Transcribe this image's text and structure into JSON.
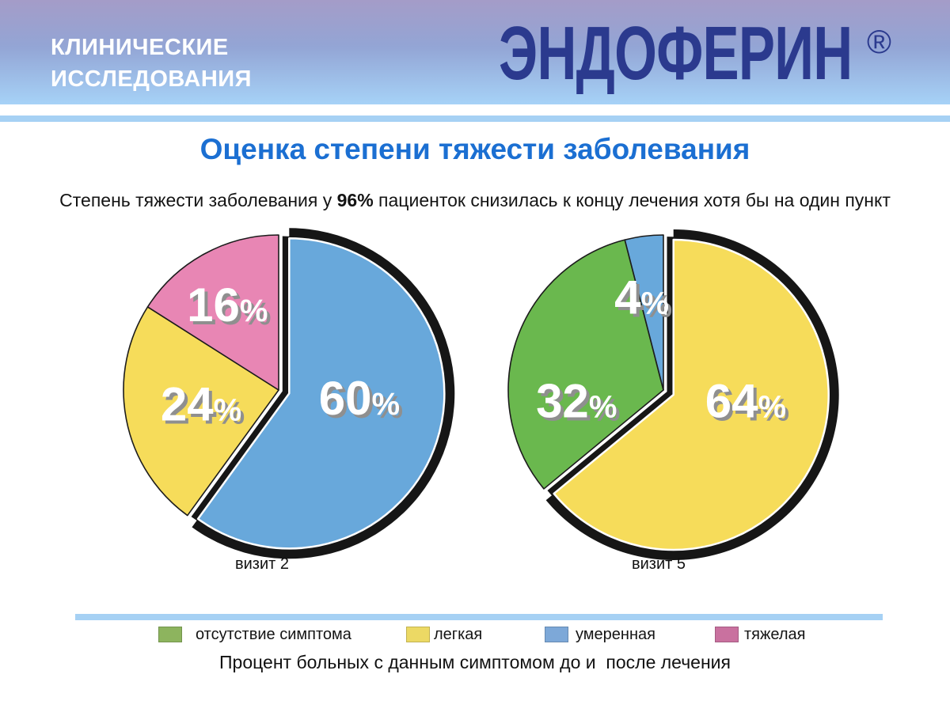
{
  "header": {
    "tagline_line1": "КЛИНИЧЕСКИЕ",
    "tagline_line2": "ИССЛЕДОВАНИЯ",
    "brand": "ЭНДОФЕРИН",
    "registered_mark": "®"
  },
  "title": "Оценка степени тяжести заболевания",
  "subtitle": {
    "pre": "Степень тяжести заболевания у ",
    "highlight": "96%",
    "post": " пациенток снизилась к концу лечения хотя бы на один пункт"
  },
  "caption": "Процент больных с данным симптомом до и  после лечения",
  "colors": {
    "header_gradient_top": "#a49cc8",
    "header_gradient_bottom": "#a6d2f7",
    "divider_blue": "#a6d1f4",
    "title_blue": "#1b6fd2",
    "brand_navy": "#2b3a8e",
    "pie_shadow_black": "#161616",
    "label_white": "#ffffff",
    "label_shadow_gray": "#8f8f8f"
  },
  "chart_data": [
    {
      "type": "pie",
      "title": "визит 2",
      "unit": "%",
      "order": "clockwise-from-top",
      "slices": [
        {
          "label": "умеренная",
          "value": 60,
          "color": "#68a8db",
          "exploded": true,
          "label_pos": [
            0.52,
            0.05
          ]
        },
        {
          "label": "легкая",
          "value": 24,
          "color": "#f6dc5a",
          "exploded": false,
          "label_pos": [
            -0.5,
            0.09
          ]
        },
        {
          "label": "тяжелая",
          "value": 16,
          "color": "#e886b4",
          "exploded": false,
          "label_pos": [
            -0.33,
            -0.55
          ]
        }
      ]
    },
    {
      "type": "pie",
      "title": "визит 5",
      "unit": "%",
      "order": "clockwise-from-top",
      "slices": [
        {
          "label": "легкая",
          "value": 64,
          "color": "#f6dc5a",
          "exploded": true,
          "label_pos": [
            0.53,
            0.07
          ]
        },
        {
          "label": "отсутствие симптома",
          "value": 32,
          "color": "#6ab84e",
          "exploded": false,
          "label_pos": [
            -0.56,
            0.07
          ]
        },
        {
          "label": "умеренная",
          "value": 4,
          "color": "#68a8db",
          "exploded": false,
          "label_pos": [
            -0.14,
            -0.6
          ]
        }
      ]
    }
  ],
  "legend": {
    "items": [
      {
        "label": "отсутствие симптома",
        "color": "#8db45e"
      },
      {
        "label": "легкая",
        "color": "#ecd964"
      },
      {
        "label": "умеренная",
        "color": "#7da8d8"
      },
      {
        "label": "тяжелая",
        "color": "#c9719f"
      }
    ]
  }
}
